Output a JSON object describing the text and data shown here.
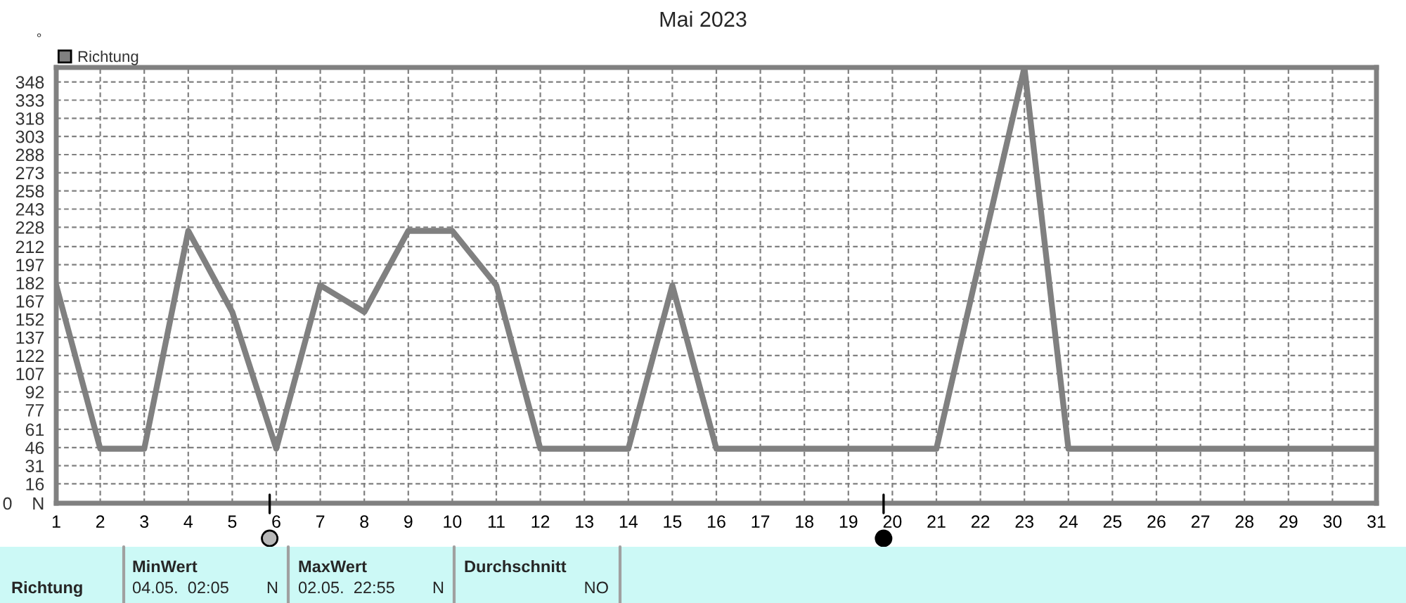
{
  "chart_data": {
    "type": "line",
    "title": "Mai 2023",
    "ylabel": "°",
    "x": [
      1,
      2,
      3,
      4,
      5,
      6,
      7,
      8,
      9,
      10,
      11,
      12,
      13,
      14,
      15,
      16,
      17,
      18,
      19,
      20,
      21,
      22,
      23,
      24,
      25,
      26,
      27,
      28,
      29,
      30,
      31
    ],
    "series": [
      {
        "name": "Richtung",
        "color": "#808080",
        "values": [
          180,
          45,
          45,
          225,
          158,
          45,
          180,
          158,
          225,
          225,
          180,
          45,
          45,
          45,
          180,
          45,
          45,
          45,
          45,
          45,
          45,
          203,
          360,
          45,
          45,
          45,
          45,
          45,
          45,
          45,
          45
        ]
      }
    ],
    "xlim": [
      1,
      31
    ],
    "xticks": [
      1,
      2,
      3,
      4,
      5,
      6,
      7,
      8,
      9,
      10,
      11,
      12,
      13,
      14,
      15,
      16,
      17,
      18,
      19,
      20,
      21,
      22,
      23,
      24,
      25,
      26,
      27,
      28,
      29,
      30,
      31
    ],
    "ylim": [
      0,
      360
    ],
    "yticks": [
      {
        "value": 0,
        "label": "0    N"
      },
      16,
      31,
      46,
      61,
      77,
      92,
      107,
      122,
      137,
      152,
      167,
      182,
      197,
      212,
      228,
      243,
      258,
      273,
      288,
      303,
      318,
      333,
      348
    ],
    "grid": true,
    "legend": "top left",
    "line_style": "solid",
    "annotations": [
      "Richtung",
      "MinWert",
      "04.05.  02:05",
      "N",
      "MaxWert",
      "02.05.  22:55",
      "N",
      "Durchschnitt",
      "NO"
    ]
  }
}
